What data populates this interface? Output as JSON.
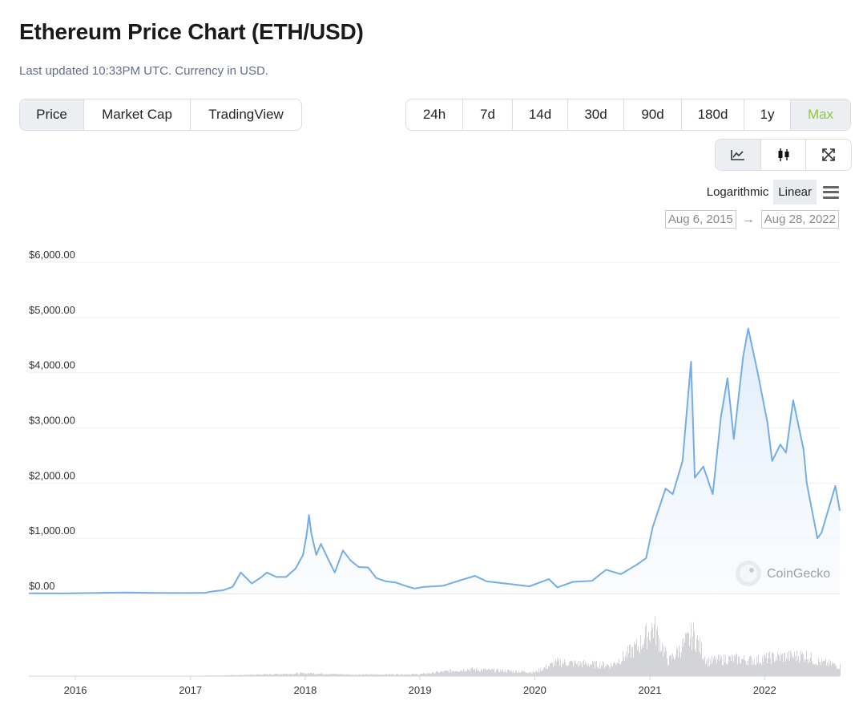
{
  "header": {
    "title": "Ethereum Price Chart (ETH/USD)",
    "subtitle": "Last updated 10:33PM UTC. Currency in USD."
  },
  "view_tabs": [
    {
      "label": "Price",
      "active": true
    },
    {
      "label": "Market Cap",
      "active": false
    },
    {
      "label": "TradingView",
      "active": false
    }
  ],
  "range_tabs": [
    {
      "label": "24h",
      "active": false
    },
    {
      "label": "7d",
      "active": false
    },
    {
      "label": "14d",
      "active": false
    },
    {
      "label": "30d",
      "active": false
    },
    {
      "label": "90d",
      "active": false
    },
    {
      "label": "180d",
      "active": false
    },
    {
      "label": "1y",
      "active": false
    },
    {
      "label": "Max",
      "active": true
    }
  ],
  "tools": [
    {
      "icon": "line-chart-icon",
      "active": true
    },
    {
      "icon": "candlestick-icon",
      "active": false
    },
    {
      "icon": "expand-icon",
      "active": false
    }
  ],
  "scale": {
    "log_label": "Logarithmic",
    "linear_label": "Linear",
    "selected": "Linear"
  },
  "date_range": {
    "from": "Aug 6, 2015",
    "arrow": "→",
    "to": "Aug 28, 2022"
  },
  "watermark": "CoinGecko",
  "colors": {
    "line": "#74ade6",
    "area": "#eef5fc",
    "volume": "#d2d4d8",
    "accent_green": "#8dc647"
  },
  "chart_data": {
    "type": "area",
    "y_ticks": [
      "$0.00",
      "$1,000.00",
      "$2,000.00",
      "$3,000.00",
      "$4,000.00",
      "$5,000.00",
      "$6,000.00"
    ],
    "x_ticks": [
      "2016",
      "2017",
      "2018",
      "2019",
      "2020",
      "2021",
      "2022"
    ],
    "ylim": [
      0,
      6000
    ],
    "xlim": [
      "2015-08-06",
      "2022-08-28"
    ],
    "grid": true,
    "series": [
      {
        "values": [
          [
            "2015-08-06",
            3
          ],
          [
            "2015-12-01",
            1
          ],
          [
            "2016-03-15",
            12
          ],
          [
            "2016-06-15",
            18
          ],
          [
            "2016-09-01",
            12
          ],
          [
            "2016-12-15",
            8
          ],
          [
            "2017-02-15",
            12
          ],
          [
            "2017-03-15",
            40
          ],
          [
            "2017-04-15",
            60
          ],
          [
            "2017-05-15",
            120
          ],
          [
            "2017-06-10",
            380
          ],
          [
            "2017-07-15",
            180
          ],
          [
            "2017-08-15",
            300
          ],
          [
            "2017-09-01",
            380
          ],
          [
            "2017-10-01",
            300
          ],
          [
            "2017-11-01",
            300
          ],
          [
            "2017-12-01",
            450
          ],
          [
            "2017-12-25",
            700
          ],
          [
            "2018-01-05",
            1050
          ],
          [
            "2018-01-13",
            1420
          ],
          [
            "2018-01-20",
            1100
          ],
          [
            "2018-02-05",
            700
          ],
          [
            "2018-02-20",
            900
          ],
          [
            "2018-03-15",
            620
          ],
          [
            "2018-04-05",
            380
          ],
          [
            "2018-05-01",
            780
          ],
          [
            "2018-05-25",
            600
          ],
          [
            "2018-06-20",
            480
          ],
          [
            "2018-07-20",
            470
          ],
          [
            "2018-08-15",
            280
          ],
          [
            "2018-09-15",
            220
          ],
          [
            "2018-10-15",
            200
          ],
          [
            "2018-11-20",
            130
          ],
          [
            "2018-12-15",
            90
          ],
          [
            "2019-01-15",
            120
          ],
          [
            "2019-03-15",
            140
          ],
          [
            "2019-05-15",
            250
          ],
          [
            "2019-06-25",
            320
          ],
          [
            "2019-08-01",
            220
          ],
          [
            "2019-10-01",
            180
          ],
          [
            "2019-12-15",
            130
          ],
          [
            "2020-02-15",
            260
          ],
          [
            "2020-03-13",
            110
          ],
          [
            "2020-05-01",
            210
          ],
          [
            "2020-07-01",
            230
          ],
          [
            "2020-08-15",
            430
          ],
          [
            "2020-10-01",
            350
          ],
          [
            "2020-11-20",
            520
          ],
          [
            "2020-12-20",
            640
          ],
          [
            "2021-01-10",
            1200
          ],
          [
            "2021-02-20",
            1900
          ],
          [
            "2021-03-15",
            1800
          ],
          [
            "2021-04-15",
            2400
          ],
          [
            "2021-05-12",
            4200
          ],
          [
            "2021-05-24",
            2100
          ],
          [
            "2021-06-20",
            2300
          ],
          [
            "2021-07-20",
            1800
          ],
          [
            "2021-08-15",
            3200
          ],
          [
            "2021-09-05",
            3900
          ],
          [
            "2021-09-25",
            2800
          ],
          [
            "2021-10-25",
            4300
          ],
          [
            "2021-11-10",
            4800
          ],
          [
            "2021-12-10",
            4000
          ],
          [
            "2022-01-10",
            3100
          ],
          [
            "2022-01-25",
            2400
          ],
          [
            "2022-02-20",
            2700
          ],
          [
            "2022-03-10",
            2550
          ],
          [
            "2022-04-02",
            3500
          ],
          [
            "2022-05-05",
            2600
          ],
          [
            "2022-05-15",
            2000
          ],
          [
            "2022-06-18",
            1000
          ],
          [
            "2022-07-01",
            1100
          ],
          [
            "2022-08-14",
            1950
          ],
          [
            "2022-08-28",
            1500
          ]
        ]
      }
    ],
    "volume": [
      [
        "2015-08-06",
        0.2
      ],
      [
        "2017-01-01",
        0.5
      ],
      [
        "2017-06-01",
        2
      ],
      [
        "2018-01-10",
        6
      ],
      [
        "2018-06-01",
        3
      ],
      [
        "2019-01-01",
        4
      ],
      [
        "2019-06-01",
        14
      ],
      [
        "2020-01-01",
        8
      ],
      [
        "2020-03-12",
        28
      ],
      [
        "2020-09-01",
        22
      ],
      [
        "2020-11-26",
        62
      ],
      [
        "2021-01-11",
        100
      ],
      [
        "2021-03-01",
        30
      ],
      [
        "2021-05-19",
        85
      ],
      [
        "2021-07-01",
        30
      ],
      [
        "2021-09-07",
        35
      ],
      [
        "2021-12-04",
        32
      ],
      [
        "2022-01-22",
        38
      ],
      [
        "2022-05-12",
        42
      ],
      [
        "2022-06-13",
        30
      ],
      [
        "2022-08-28",
        20
      ]
    ]
  }
}
